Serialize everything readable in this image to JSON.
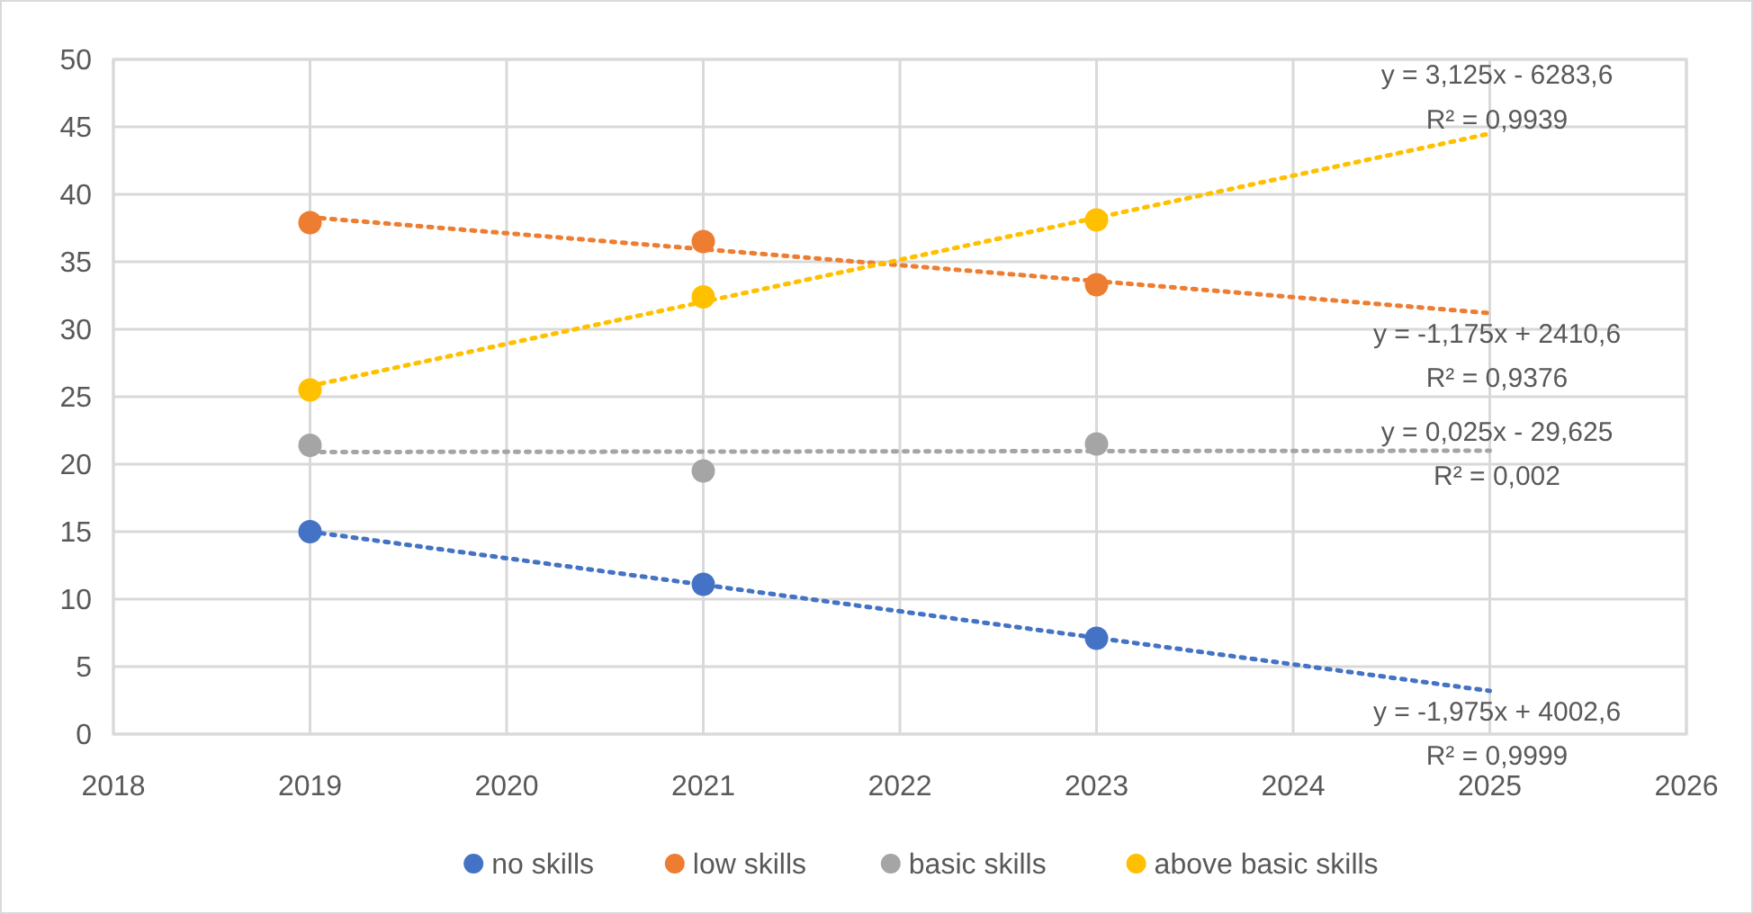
{
  "chart_data": {
    "type": "scatter",
    "xlim": [
      2018,
      2026
    ],
    "xticks": [
      2018,
      2019,
      2020,
      2021,
      2022,
      2023,
      2024,
      2025,
      2026
    ],
    "ylim": [
      0,
      50
    ],
    "yticks": [
      0,
      5,
      10,
      15,
      20,
      25,
      30,
      35,
      40,
      45,
      50
    ],
    "grid": true,
    "legend": "bottom",
    "marker": "circle",
    "series": [
      {
        "name": "no skills",
        "color": "#4472c4",
        "x": [
          2019,
          2021,
          2023
        ],
        "values": [
          15,
          11.1,
          7.1
        ]
      },
      {
        "name": "low skills",
        "color": "#ed7d31",
        "x": [
          2019,
          2021,
          2023
        ],
        "values": [
          37.9,
          36.5,
          33.3
        ]
      },
      {
        "name": "basic skills",
        "color": "#a5a5a5",
        "x": [
          2019,
          2021,
          2023
        ],
        "values": [
          21.4,
          19.5,
          21.5
        ]
      },
      {
        "name": "above basic skills",
        "color": "#ffc000",
        "x": [
          2019,
          2021,
          2023
        ],
        "values": [
          25.5,
          32.4,
          38.1
        ]
      },
      {
        "type": "line",
        "color": "#4472c4",
        "line_style": "dotted",
        "marker": "none",
        "x": [
          2019,
          2025
        ],
        "values": [
          15,
          3.2
        ]
      },
      {
        "type": "line",
        "color": "#ed7d31",
        "line_style": "dotted",
        "marker": "none",
        "x": [
          2019,
          2025
        ],
        "values": [
          38.3,
          31.2
        ]
      },
      {
        "type": "line",
        "color": "#a5a5a5",
        "line_style": "dotted",
        "marker": "none",
        "x": [
          2019,
          2025
        ],
        "values": [
          20.9,
          21
        ]
      },
      {
        "type": "line",
        "color": "#ffc000",
        "line_style": "dotted",
        "marker": "none",
        "x": [
          2019,
          2025
        ],
        "values": [
          25.8,
          44.5
        ]
      }
    ],
    "annotations": [
      "y = -1,975x + 4002,6\nR² = 0,9999",
      "y = -1,175x + 2410,6\nR² = 0,9376",
      "y = 0,025x - 29,625\nR² = 0,002",
      "y = 3,125x - 6283,6\nR² = 0,9939"
    ]
  }
}
